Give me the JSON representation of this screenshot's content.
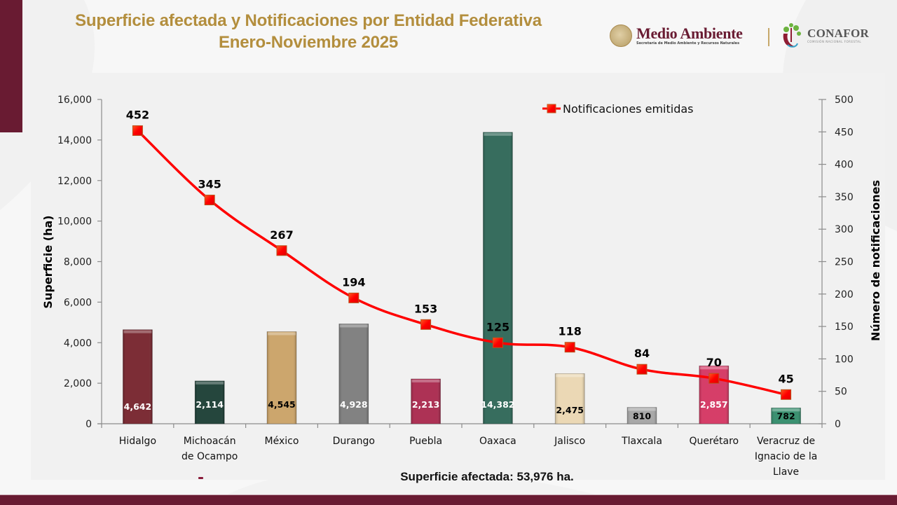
{
  "header": {
    "title_line1": "Superficie afectada y Notificaciones por Entidad Federativa",
    "title_line2": "Enero-Noviembre 2025"
  },
  "logos": {
    "semarnat_name": "Medio Ambiente",
    "semarnat_sub": "Secretaría de Medio Ambiente y Recursos Naturales",
    "conafor_name": "CONAFOR",
    "conafor_sub": "COMISIÓN NACIONAL FORESTAL"
  },
  "colors": {
    "brand_maroon": "#691b32",
    "title_gold": "#b38e3d",
    "line_red": "#ff0000"
  },
  "footer": {
    "total_label": "Superficie afectada: 53,976 ha."
  },
  "chart_data": {
    "type": "bar+line",
    "title": "Superficie afectada y Notificaciones por Entidad Federativa Enero-Noviembre 2025",
    "categories": [
      [
        "Hidalgo"
      ],
      [
        "Michoacán",
        "de Ocampo"
      ],
      [
        "México"
      ],
      [
        "Durango"
      ],
      [
        "Puebla"
      ],
      [
        "Oaxaca"
      ],
      [
        "Jalisco"
      ],
      [
        "Tlaxcala"
      ],
      [
        "Querétaro"
      ],
      [
        "Veracruz de",
        "Ignacio de la",
        "Llave"
      ]
    ],
    "bar_series": {
      "name": "Superficie afectada (ha)",
      "values": [
        4642,
        2114,
        4545,
        4928,
        2213,
        14382,
        2475,
        810,
        2857,
        782
      ],
      "labels": [
        "4,642",
        "2,114",
        "4,545",
        "4,928",
        "2,213",
        "14,382",
        "2,475",
        "810",
        "2,857",
        "782"
      ],
      "colors": [
        "#742029",
        "#173a31",
        "#c9a064",
        "#7a7a7a",
        "#a8254a",
        "#2a6454",
        "#ead6b0",
        "#a3a3a3",
        "#d3325f",
        "#2f8a68"
      ],
      "label_colors": [
        "#ffffff",
        "#ffffff",
        "#000000",
        "#ffffff",
        "#ffffff",
        "#ffffff",
        "#000000",
        "#000000",
        "#ffffff",
        "#000000"
      ],
      "axis": "left"
    },
    "line_series": {
      "name": "Notificaciones emitidas",
      "values": [
        452,
        345,
        267,
        194,
        153,
        125,
        118,
        84,
        70,
        45
      ],
      "labels": [
        "452",
        "345",
        "267",
        "194",
        "153",
        "125",
        "118",
        "84",
        "70",
        "45"
      ],
      "label_colors": [
        "#000000",
        "#000000",
        "#000000",
        "#000000",
        "#000000",
        "#ffffff",
        "#000000",
        "#000000",
        "#000000",
        "#000000"
      ],
      "color": "#ff0000",
      "marker": "square",
      "axis": "right"
    },
    "ylabel": "Superficie (ha)",
    "y2label": "Número de notificaciones",
    "ylim": [
      0,
      16000
    ],
    "y2lim": [
      0,
      500
    ],
    "yticks": [
      "0",
      "2,000",
      "4,000",
      "6,000",
      "8,000",
      "10,000",
      "12,000",
      "14,000",
      "16,000"
    ],
    "yticks_values": [
      0,
      2000,
      4000,
      6000,
      8000,
      10000,
      12000,
      14000,
      16000
    ],
    "y2ticks": [
      "0",
      "50",
      "100",
      "150",
      "200",
      "250",
      "300",
      "350",
      "400",
      "450",
      "500"
    ],
    "y2ticks_values": [
      0,
      50,
      100,
      150,
      200,
      250,
      300,
      350,
      400,
      450,
      500
    ],
    "grid": false,
    "legend": {
      "entries": [
        "Notificaciones emitidas"
      ],
      "placement": "top-right"
    }
  }
}
